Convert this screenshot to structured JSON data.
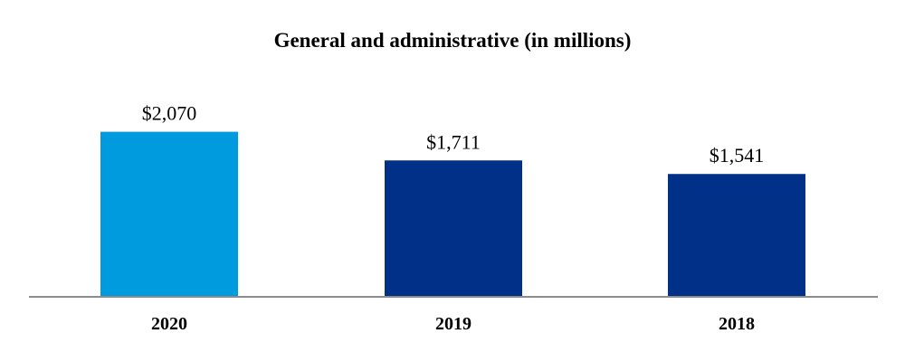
{
  "chart_data": {
    "type": "bar",
    "title": "General and administrative (in millions)",
    "categories": [
      "2020",
      "2019",
      "2018"
    ],
    "values": [
      2070,
      1711,
      1541
    ],
    "data_labels": [
      "$2,070",
      "$1,711",
      "$1,541"
    ],
    "bar_colors": [
      "#009ADE",
      "#003087",
      "#003087"
    ],
    "axis_color": "#8C8C8C",
    "xlabel": "",
    "ylabel": "",
    "ylim": [
      0,
      2270
    ],
    "grid": false,
    "legend": "none"
  }
}
